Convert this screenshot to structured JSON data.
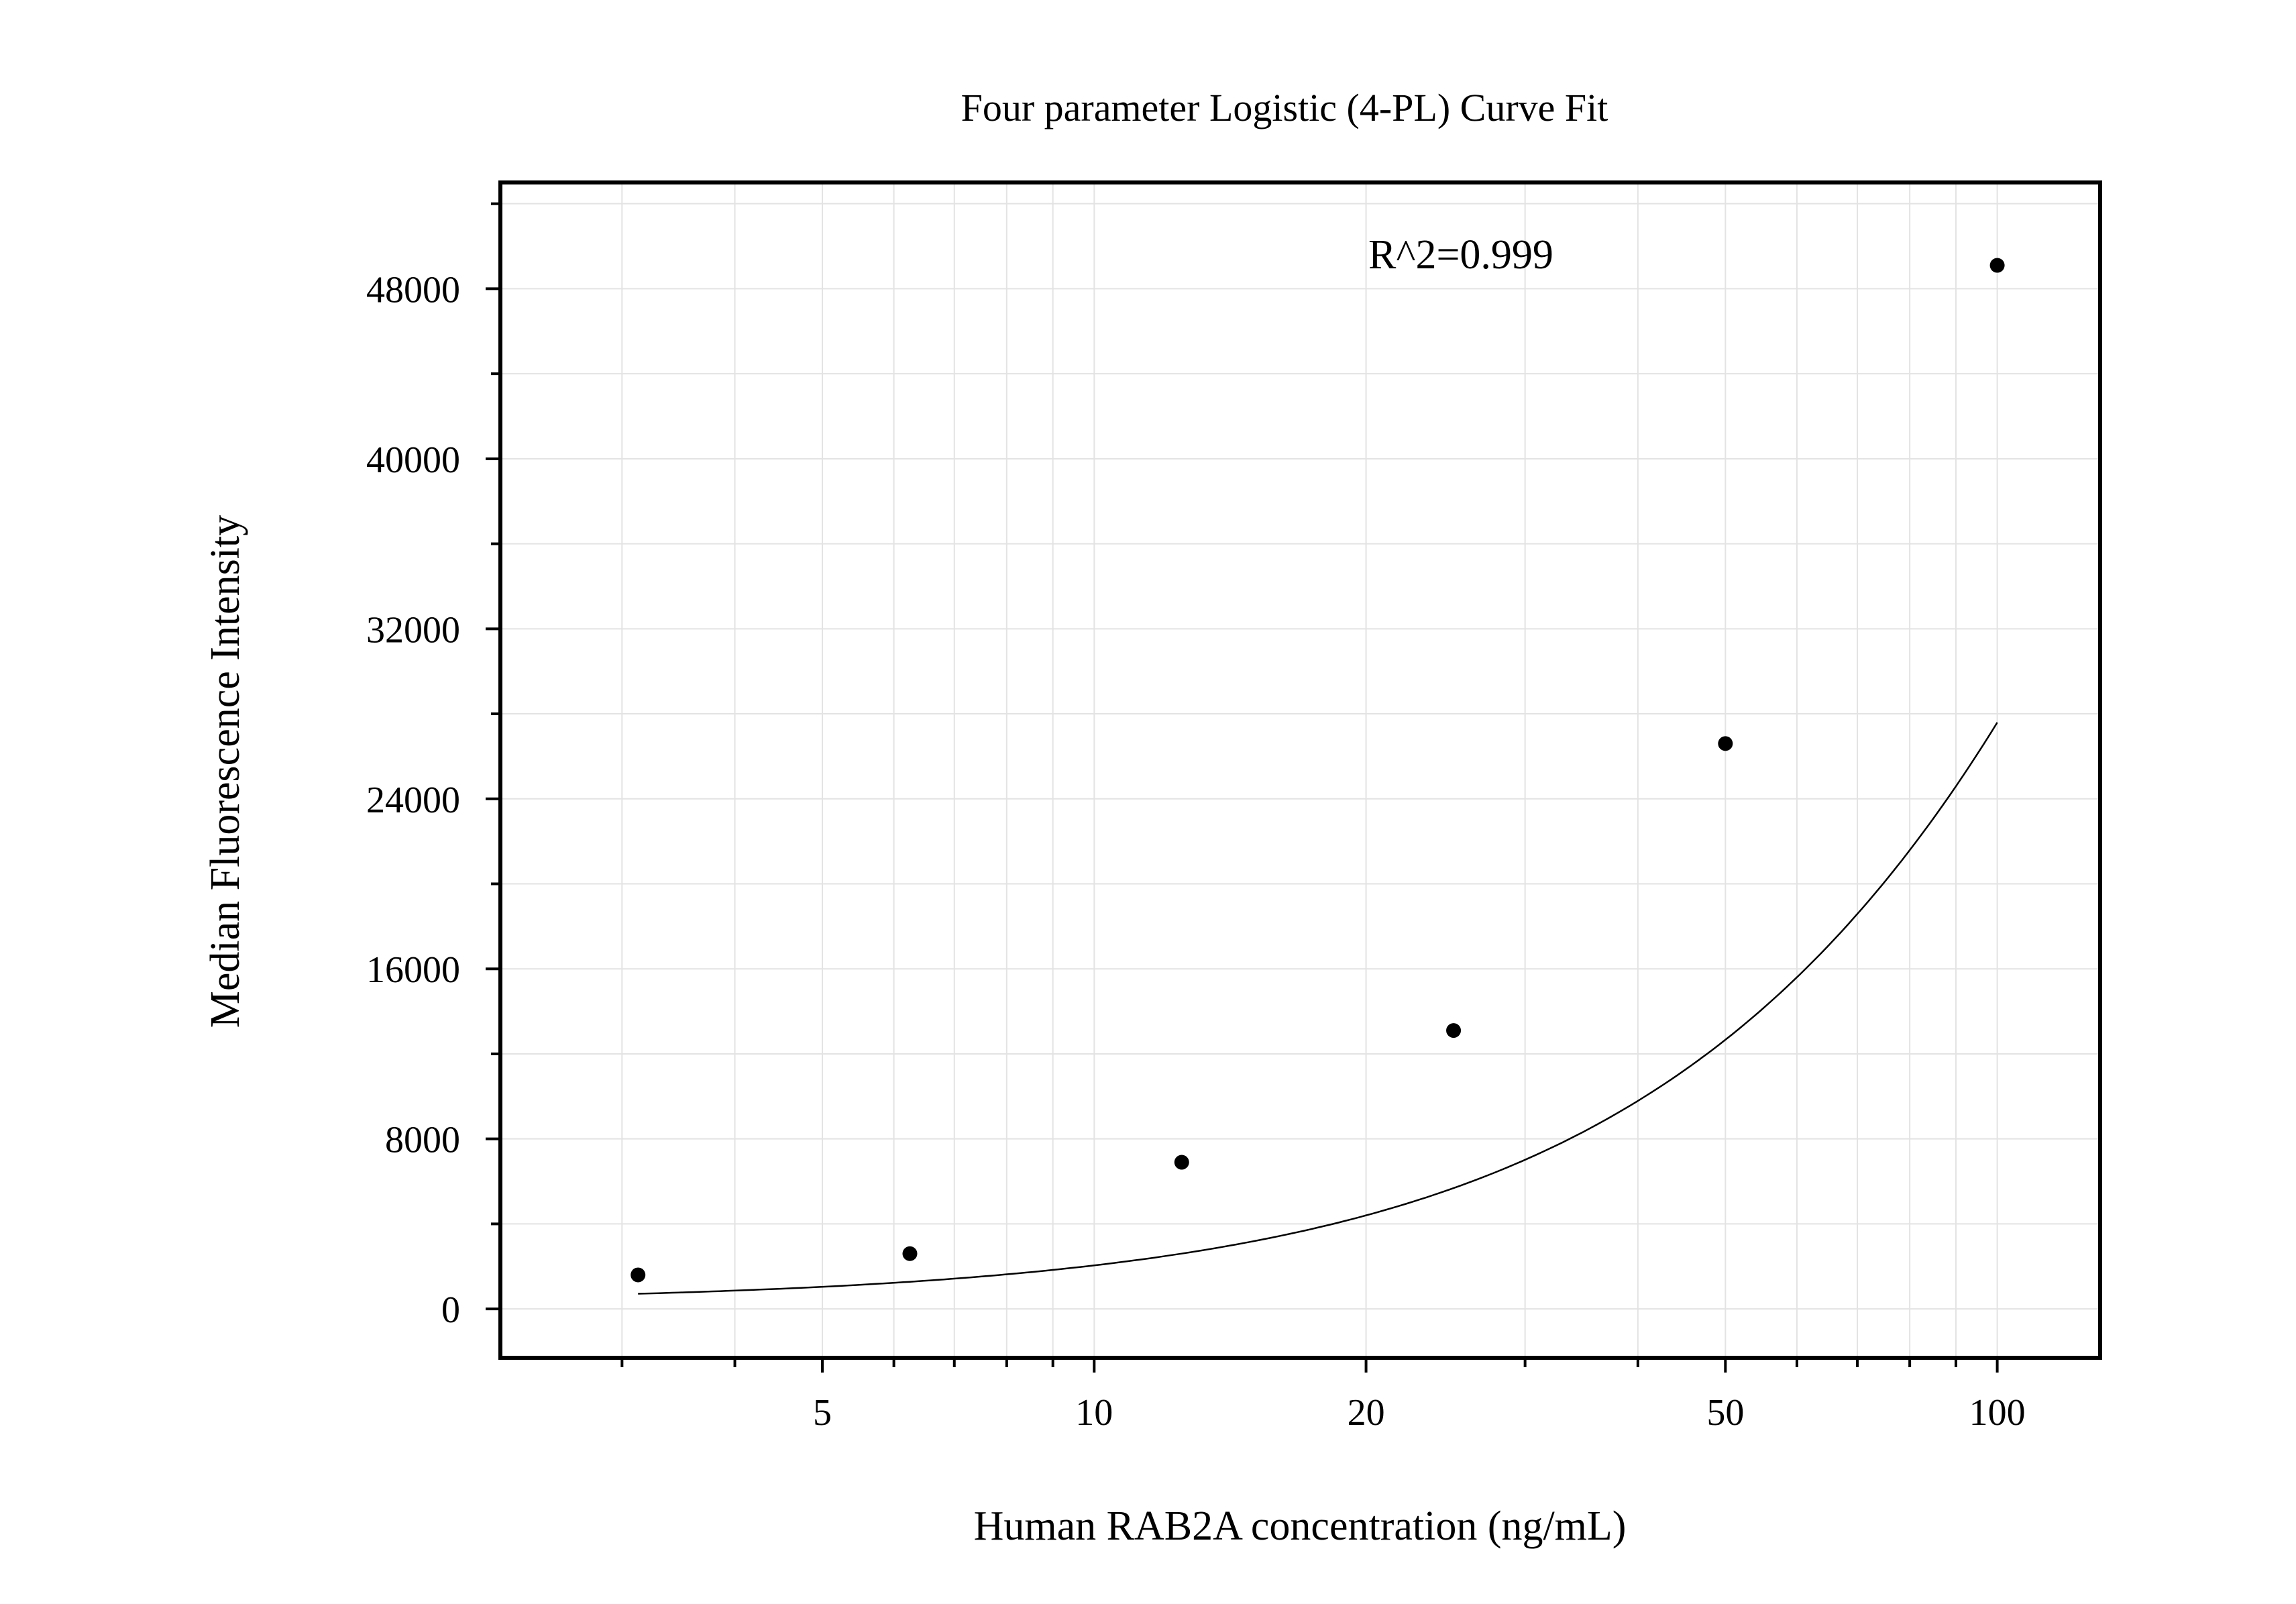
{
  "chart_data": {
    "type": "scatter",
    "title": "Four parameter Logistic (4-PL) Curve Fit",
    "xlabel": "Human RAB2A concentration (ng/mL)",
    "ylabel": "Median Fluorescence Intensity",
    "x_scale": "log",
    "xlim": [
      2.2,
      130
    ],
    "ylim": [
      -2300,
      53000
    ],
    "x_ticks": [
      5,
      10,
      20,
      50,
      100
    ],
    "x_tick_labels": [
      "5",
      "10",
      "20",
      "50",
      "100"
    ],
    "y_ticks": [
      0,
      8000,
      16000,
      24000,
      32000,
      40000,
      48000
    ],
    "y_tick_labels": [
      "0",
      "8000",
      "16000",
      "24000",
      "32000",
      "40000",
      "48000"
    ],
    "grid": true,
    "annotation": "R^2=0.999",
    "series": [
      {
        "markers": "filled-circle",
        "x": [
          3.125,
          6.25,
          12.5,
          25,
          50,
          100
        ],
        "y": [
          1600,
          2600,
          6900,
          13100,
          26600,
          49100
        ]
      },
      {
        "style": "line",
        "fit": "4PL",
        "params": {
          "A": 300,
          "B": 1.245,
          "C": 500,
          "D": 230000
        },
        "x_range": [
          3.125,
          100
        ]
      }
    ]
  }
}
